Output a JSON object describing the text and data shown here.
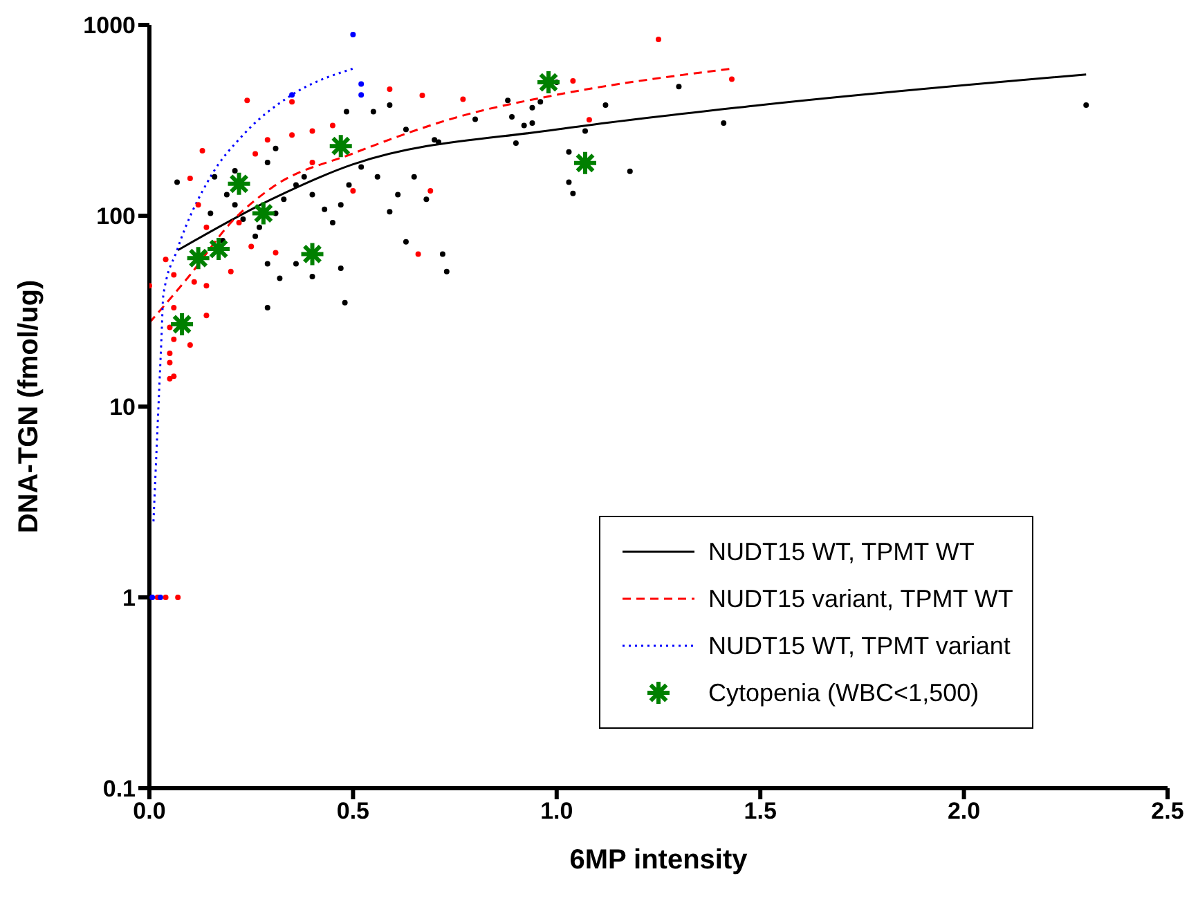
{
  "chart_data": {
    "type": "scatter",
    "xlabel": "6MP intensity",
    "ylabel": "DNA-TGN (fmol/ug)",
    "log": "y",
    "xlim": [
      0,
      2.5
    ],
    "xticks": [
      {
        "value": 0,
        "label": "0.0"
      },
      {
        "value": 0.5,
        "label": "0.5"
      },
      {
        "value": 1,
        "label": "1.0"
      },
      {
        "value": 1.5,
        "label": "1.5"
      },
      {
        "value": 2,
        "label": "2.0"
      },
      {
        "value": 2.5,
        "label": "2.5"
      }
    ],
    "ylim": [
      0.1,
      1000
    ],
    "yticks": [
      0.1,
      1,
      10,
      100,
      1000
    ],
    "legend": "bottom right",
    "series": [
      {
        "type": "scatter",
        "color": "#000000",
        "marker": "circle",
        "x": [
          0.068,
          0.484,
          0.55,
          0.59,
          0.63,
          0.71,
          0.29,
          0.48,
          0.73,
          0.72,
          0.63,
          0.59,
          0.47,
          0.4,
          0.36,
          0.32,
          0.29,
          0.16,
          0.19,
          0.21,
          0.23,
          0.27,
          0.31,
          0.33,
          0.36,
          0.38,
          0.4,
          0.43,
          0.45,
          0.47,
          0.49,
          0.52,
          0.56,
          0.61,
          0.65,
          0.68,
          0.7,
          0.31,
          0.29,
          0.26,
          0.21,
          0.15,
          0.18,
          0.88,
          0.89,
          0.92,
          0.94,
          0.94,
          0.96,
          1.0,
          1.03,
          1.03,
          1.04,
          1.07,
          1.12,
          1.18,
          1.3,
          1.41,
          2.3,
          0.8,
          0.9
        ],
        "values": [
          150,
          351,
          351,
          380,
          283,
          243,
          33,
          35,
          51,
          63,
          73,
          105,
          53,
          48,
          56,
          47,
          56,
          160,
          129,
          114,
          96,
          87,
          103,
          122,
          145,
          160,
          129,
          108,
          92,
          114,
          145,
          180,
          160,
          129,
          160,
          122,
          250,
          225,
          190,
          78,
          172,
          103,
          74,
          402,
          330,
          297,
          368,
          306,
          395,
          500,
          216,
          150,
          131,
          278,
          380,
          171,
          475,
          306,
          380,
          320,
          240
        ]
      },
      {
        "type": "scatter",
        "color": "#ff0000",
        "marker": "circle",
        "x": [
          0.77,
          1.04,
          1.08,
          1.25,
          1.43,
          0.24,
          0.35,
          0.4,
          0.45,
          0.59,
          0.67,
          0.66,
          0.13,
          0.1,
          0.12,
          0.14,
          0.04,
          0.0,
          0.06,
          0.11,
          0.14,
          0.2,
          0.06,
          0.14,
          0.05,
          0.1,
          0.26,
          0.29,
          0.35,
          0.22,
          0.25,
          0.31,
          0.4,
          0.5,
          0.69,
          0.06,
          0.05,
          0.05,
          0.05,
          0.06,
          0.02,
          0.03,
          0.04,
          0.07
        ],
        "values": [
          408,
          509,
          318,
          840,
          520,
          402,
          395,
          278,
          297,
          460,
          427,
          63,
          219,
          157,
          114,
          87,
          59,
          43,
          49,
          45,
          43,
          51,
          33,
          30,
          26,
          21,
          211,
          250,
          265,
          92,
          69,
          64,
          190,
          135,
          135,
          22.5,
          19,
          17,
          14,
          14.4,
          1,
          null,
          1,
          1
        ]
      },
      {
        "type": "scatter",
        "color": "#0000ff",
        "marker": "circle",
        "x": [
          0.5,
          0.52,
          0.52,
          0.35,
          0.007,
          0.027
        ],
        "values": [
          890,
          490,
          430,
          430,
          1,
          1
        ]
      },
      {
        "type": "line",
        "name": "NUDT15 WT, TPMT WT",
        "color": "#000000",
        "line_style": "solid",
        "marker": "none",
        "x": [
          0.07,
          0.3,
          0.5,
          1.0,
          1.5,
          2.3
        ],
        "values": [
          66,
          122,
          186,
          283,
          380,
          550
        ]
      },
      {
        "type": "line",
        "name": "NUDT15 variant, TPMT WT",
        "color": "#ff0000",
        "line_style": "dashed",
        "marker": "none",
        "x": [
          0,
          0.1,
          0.2,
          0.3,
          0.5,
          0.77,
          1.0,
          1.43
        ],
        "values": [
          27.5,
          49,
          92,
          140,
          212,
          335,
          430,
          590
        ]
      },
      {
        "type": "line",
        "name": "NUDT15 WT, TPMT variant",
        "color": "#0000ff",
        "line_style": "dotted",
        "marker": "none",
        "x": [
          0.01,
          0.02,
          0.03,
          0.034,
          0.068,
          0.15,
          0.23,
          0.35,
          0.5
        ],
        "values": [
          2.5,
          7.8,
          24,
          38,
          66,
          160,
          265,
          430,
          590
        ]
      },
      {
        "type": "scatter",
        "name": "Cytopenia (WBC<1,500)",
        "color": "#008000",
        "marker": "cross",
        "x": [
          0.08,
          0.12,
          0.17,
          0.22,
          0.28,
          0.4,
          0.47,
          0.98,
          1.07
        ],
        "values": [
          27,
          60,
          67,
          147,
          103,
          63,
          232,
          500,
          189
        ]
      }
    ]
  }
}
